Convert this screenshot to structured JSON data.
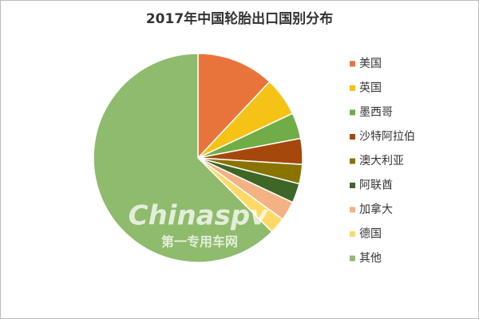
{
  "chart_data": {
    "type": "pie",
    "title": "2017年中国轮胎出口国别分布",
    "categories": [
      "美国",
      "英国",
      "墨西哥",
      "沙特阿拉伯",
      "澳大利亚",
      "阿联酋",
      "加拿大",
      "德国",
      "其他"
    ],
    "values": [
      12,
      6,
      4,
      4,
      3,
      3,
      3,
      2.5,
      62.5
    ],
    "colors": [
      "#e8743b",
      "#f5c216",
      "#70ad47",
      "#a5480c",
      "#8a7400",
      "#3e6627",
      "#f4b183",
      "#ffd966",
      "#8fbb6c"
    ],
    "legend": "right",
    "watermark": [
      "Chinaspv",
      "第一专用车网"
    ]
  }
}
